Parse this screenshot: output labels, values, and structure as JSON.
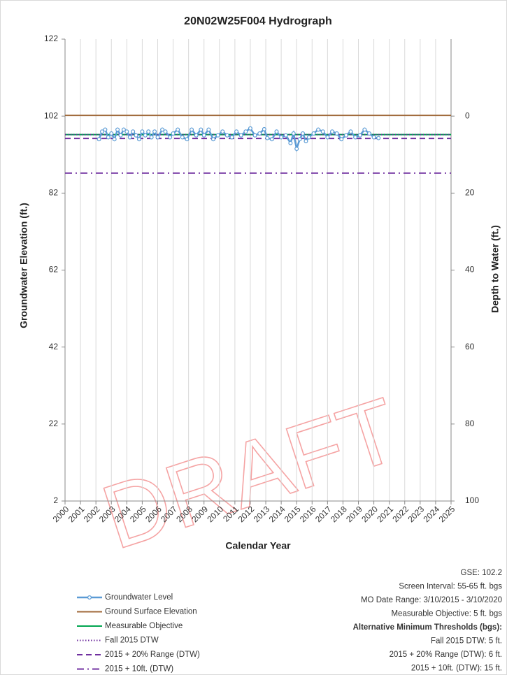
{
  "chart_data": {
    "type": "line",
    "title": "20N02W25F004  Hydrograph",
    "xlabel": "Calendar Year",
    "ylabel": "Groundwater Elevation (ft.)",
    "y2label": "Depth to Water (ft.)",
    "xlim": [
      2000,
      2025
    ],
    "xticks": [
      2000,
      2001,
      2002,
      2003,
      2004,
      2005,
      2006,
      2007,
      2008,
      2009,
      2010,
      2011,
      2012,
      2013,
      2014,
      2015,
      2016,
      2017,
      2018,
      2019,
      2020,
      2021,
      2022,
      2023,
      2024,
      2025
    ],
    "ylim": [
      2,
      122
    ],
    "yticks": [
      2,
      22,
      42,
      62,
      82,
      102,
      122
    ],
    "y2lim": [
      100,
      -20
    ],
    "y2ticks": [
      0,
      20,
      40,
      60,
      80,
      100
    ],
    "grid": "x",
    "legend": "bottom-left",
    "series": [
      {
        "name": "Groundwater Level",
        "color": "#5b9bd5",
        "dash": "solid",
        "marker": "circle",
        "x": [
          2002.2,
          2002.4,
          2002.6,
          2002.8,
          2003.0,
          2003.2,
          2003.4,
          2003.6,
          2003.8,
          2004.0,
          2004.2,
          2004.4,
          2004.6,
          2004.8,
          2005.0,
          2005.2,
          2005.4,
          2005.6,
          2005.8,
          2006.0,
          2006.3,
          2006.5,
          2006.8,
          2007.0,
          2007.3,
          2007.6,
          2007.9,
          2008.2,
          2008.5,
          2008.8,
          2009.0,
          2009.3,
          2009.6,
          2009.9,
          2010.2,
          2010.5,
          2010.8,
          2011.1,
          2011.4,
          2011.7,
          2012.0,
          2012.3,
          2012.6,
          2012.9,
          2013.1,
          2013.4,
          2013.7,
          2014.0,
          2014.3,
          2014.6,
          2014.8,
          2015.0,
          2015.2,
          2015.4,
          2015.6,
          2015.8,
          2016.1,
          2016.4,
          2016.7,
          2017.0,
          2017.3,
          2017.6,
          2017.9,
          2018.2,
          2018.5,
          2018.8,
          2019.1,
          2019.4,
          2019.7,
          2020.0,
          2020.3
        ],
        "values": [
          96,
          98,
          98.5,
          96.5,
          97.5,
          96,
          98.5,
          97,
          98.5,
          98,
          96.5,
          98,
          97,
          96,
          98,
          97,
          98,
          96.5,
          98,
          96.5,
          98.5,
          98,
          96.5,
          97.5,
          98.5,
          96.5,
          96,
          98.5,
          97,
          98.5,
          97,
          98.5,
          96,
          97,
          98,
          97,
          96.5,
          98,
          97,
          98,
          98.8,
          97,
          97.5,
          98.6,
          96.3,
          96,
          98,
          96.5,
          97,
          95,
          97.5,
          93.5,
          96,
          97.5,
          95.5,
          96.5,
          97.5,
          98.5,
          98,
          96.5,
          98,
          97.5,
          96,
          97,
          98,
          96.5,
          97,
          98.5,
          97.5,
          96.5,
          96.3
        ]
      },
      {
        "name": "Ground Surface Elevation",
        "color": "#a0693a",
        "dash": "solid",
        "x": [
          2000,
          2025
        ],
        "values": [
          102.2,
          102.2
        ]
      },
      {
        "name": "Measurable Objective",
        "color": "#00a550",
        "dash": "solid",
        "x": [
          2000,
          2025
        ],
        "values": [
          97.2,
          97.2
        ]
      },
      {
        "name": "Fall 2015 DTW",
        "color": "#7030a0",
        "dash": "dotted",
        "x": [
          2000,
          2025
        ],
        "values": [
          97.2,
          97.2
        ]
      },
      {
        "name": "2015 + 20% Range (DTW)",
        "color": "#7030a0",
        "dash": "dashed",
        "x": [
          2000,
          2025
        ],
        "values": [
          96.2,
          96.2
        ]
      },
      {
        "name": "2015 + 10ft. (DTW)",
        "color": "#7030a0",
        "dash": "dashdot",
        "x": [
          2000,
          2025
        ],
        "values": [
          87.2,
          87.2
        ]
      }
    ],
    "annotations": [
      {
        "text": "GSE: 102.2",
        "bold": false
      },
      {
        "text": "Screen Interval: 55-65 ft. bgs",
        "bold": false
      },
      {
        "text": "MO Date Range: 3/10/2015 - 3/10/2020",
        "bold": false
      },
      {
        "text": "Measurable Objective: 5 ft. bgs",
        "bold": false
      },
      {
        "text": "Alternative Minimum Thresholds (bgs):",
        "bold": true
      },
      {
        "text": "Fall 2015 DTW: 5 ft.",
        "bold": false
      },
      {
        "text": "2015 + 20% Range (DTW): 6 ft.",
        "bold": false
      },
      {
        "text": "2015 + 10ft. (DTW): 15 ft.",
        "bold": false
      }
    ],
    "watermark": "DRAFT"
  }
}
